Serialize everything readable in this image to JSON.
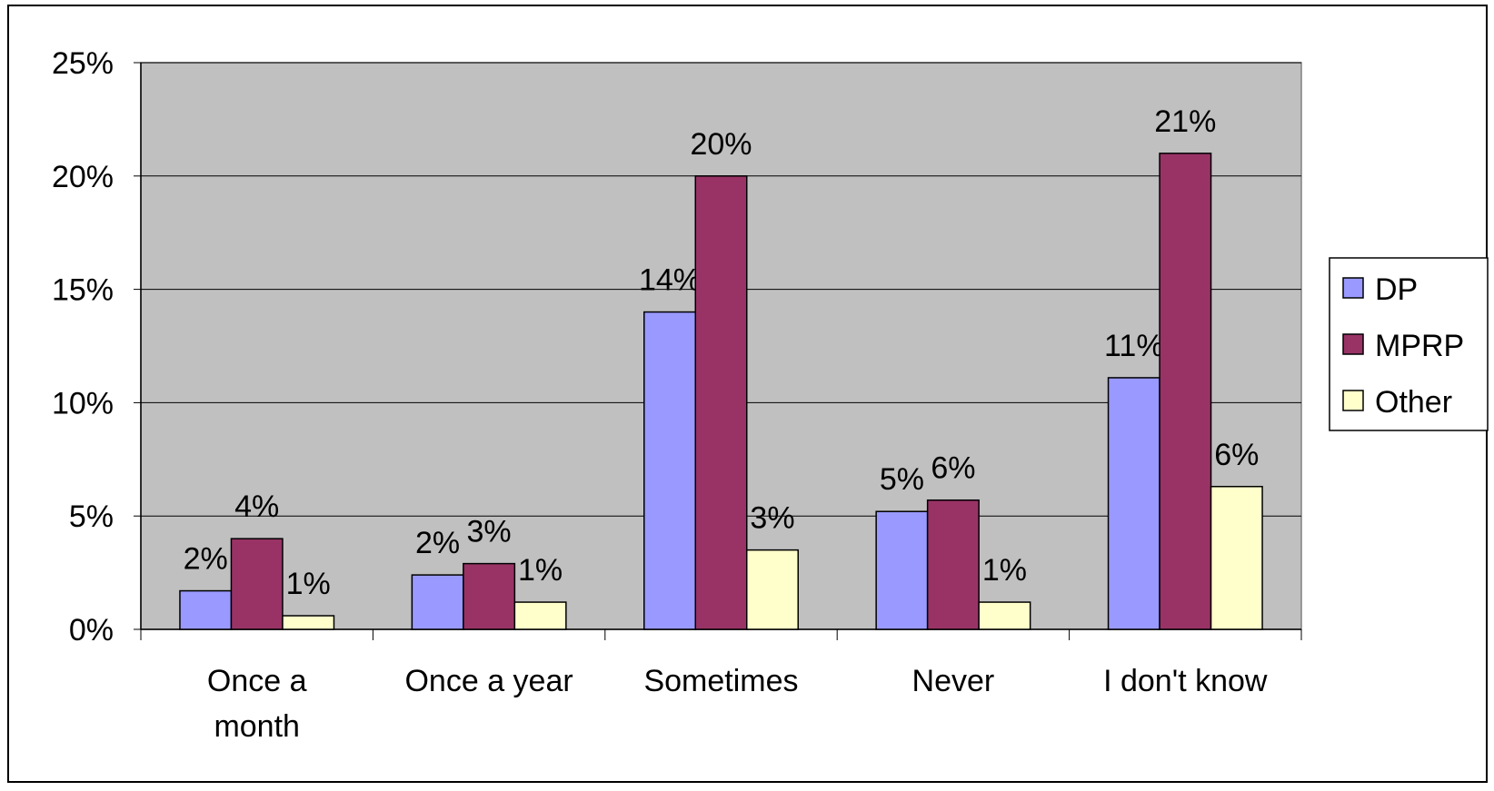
{
  "chart_data": {
    "type": "bar",
    "categories": [
      "Once a month",
      "Once a year",
      "Sometimes",
      "Never",
      "I don't know"
    ],
    "category_label_lines": [
      [
        "Once a",
        "month"
      ],
      [
        "Once a year"
      ],
      [
        "Sometimes"
      ],
      [
        "Never"
      ],
      [
        "I don't know"
      ]
    ],
    "series": [
      {
        "name": "DP",
        "color": "#9999ff",
        "values": [
          1.7,
          2.4,
          14.0,
          5.2,
          11.1
        ],
        "labels": [
          "2%",
          "2%",
          "14%",
          "5%",
          "11%"
        ]
      },
      {
        "name": "MPRP",
        "color": "#993366",
        "values": [
          4.0,
          2.9,
          20.0,
          5.7,
          21.0
        ],
        "labels": [
          "4%",
          "3%",
          "20%",
          "6%",
          "21%"
        ]
      },
      {
        "name": "Other",
        "color": "#ffffcc",
        "values": [
          0.6,
          1.2,
          3.5,
          1.2,
          6.3
        ],
        "labels": [
          "1%",
          "1%",
          "3%",
          "1%",
          "6%"
        ]
      }
    ],
    "ylim": [
      0,
      25
    ],
    "yticks": [
      0,
      5,
      10,
      15,
      20,
      25
    ],
    "ytick_labels": [
      "0%",
      "5%",
      "10%",
      "15%",
      "20%",
      "25%"
    ],
    "title": "",
    "xlabel": "",
    "ylabel": "",
    "grid": true,
    "plot_background": "#c0c0c0",
    "legend_position": "right"
  }
}
